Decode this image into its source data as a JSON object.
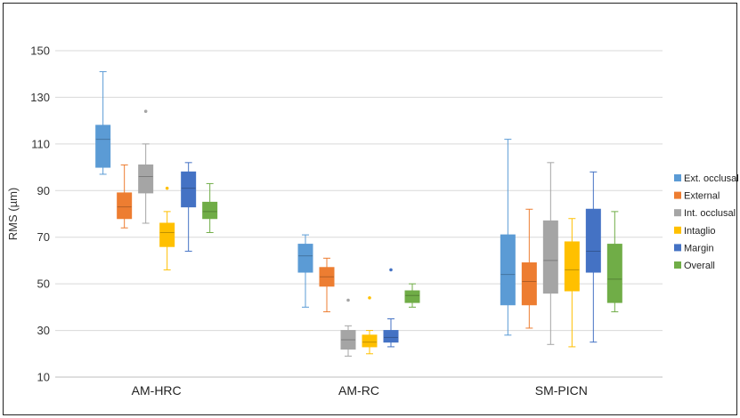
{
  "chart_data": {
    "type": "boxplot",
    "title": "",
    "xlabel": "",
    "ylabel": "RMS (µm)",
    "ylim": [
      10,
      150
    ],
    "yticks": [
      10,
      30,
      50,
      70,
      90,
      110,
      130,
      150
    ],
    "grid": true,
    "legend_position": "right",
    "categories": [
      "AM-HRC",
      "AM-RC",
      "SM-PICN"
    ],
    "series": [
      {
        "name": "Ext. occlusal",
        "color": "#5b9bd5",
        "boxes": [
          {
            "min": 97,
            "q1": 100,
            "median": 112,
            "q3": 118,
            "max": 141,
            "outliers": []
          },
          {
            "min": 40,
            "q1": 55,
            "median": 62,
            "q3": 67,
            "max": 71,
            "outliers": []
          },
          {
            "min": 28,
            "q1": 41,
            "median": 54,
            "q3": 71,
            "max": 112,
            "outliers": []
          }
        ]
      },
      {
        "name": "External",
        "color": "#ed7d31",
        "boxes": [
          {
            "min": 74,
            "q1": 78,
            "median": 83,
            "q3": 89,
            "max": 101,
            "outliers": []
          },
          {
            "min": 38,
            "q1": 49,
            "median": 53,
            "q3": 57,
            "max": 61,
            "outliers": []
          },
          {
            "min": 31,
            "q1": 41,
            "median": 51,
            "q3": 59,
            "max": 82,
            "outliers": []
          }
        ]
      },
      {
        "name": "Int. occlusal",
        "color": "#a5a5a5",
        "boxes": [
          {
            "min": 76,
            "q1": 89,
            "median": 96,
            "q3": 101,
            "max": 110,
            "outliers": [
              124
            ]
          },
          {
            "min": 19,
            "q1": 22,
            "median": 26,
            "q3": 30,
            "max": 32,
            "outliers": [
              43
            ]
          },
          {
            "min": 24,
            "q1": 46,
            "median": 60,
            "q3": 77,
            "max": 102,
            "outliers": []
          }
        ]
      },
      {
        "name": "Intaglio",
        "color": "#ffc000",
        "boxes": [
          {
            "min": 56,
            "q1": 66,
            "median": 72,
            "q3": 76,
            "max": 81,
            "outliers": [
              91
            ]
          },
          {
            "min": 20,
            "q1": 23,
            "median": 25,
            "q3": 28,
            "max": 30,
            "outliers": [
              44
            ]
          },
          {
            "min": 23,
            "q1": 47,
            "median": 56,
            "q3": 68,
            "max": 78,
            "outliers": []
          }
        ]
      },
      {
        "name": "Margin",
        "color": "#4472c4",
        "boxes": [
          {
            "min": 64,
            "q1": 83,
            "median": 91,
            "q3": 98,
            "max": 102,
            "outliers": []
          },
          {
            "min": 23,
            "q1": 25,
            "median": 27,
            "q3": 30,
            "max": 35,
            "outliers": [
              56
            ]
          },
          {
            "min": 25,
            "q1": 55,
            "median": 64,
            "q3": 82,
            "max": 98,
            "outliers": []
          }
        ]
      },
      {
        "name": "Overall",
        "color": "#70ad47",
        "boxes": [
          {
            "min": 72,
            "q1": 78,
            "median": 81,
            "q3": 85,
            "max": 93,
            "outliers": []
          },
          {
            "min": 40,
            "q1": 42,
            "median": 45,
            "q3": 47,
            "max": 50,
            "outliers": []
          },
          {
            "min": 38,
            "q1": 42,
            "median": 52,
            "q3": 67,
            "max": 81,
            "outliers": []
          }
        ]
      }
    ]
  }
}
